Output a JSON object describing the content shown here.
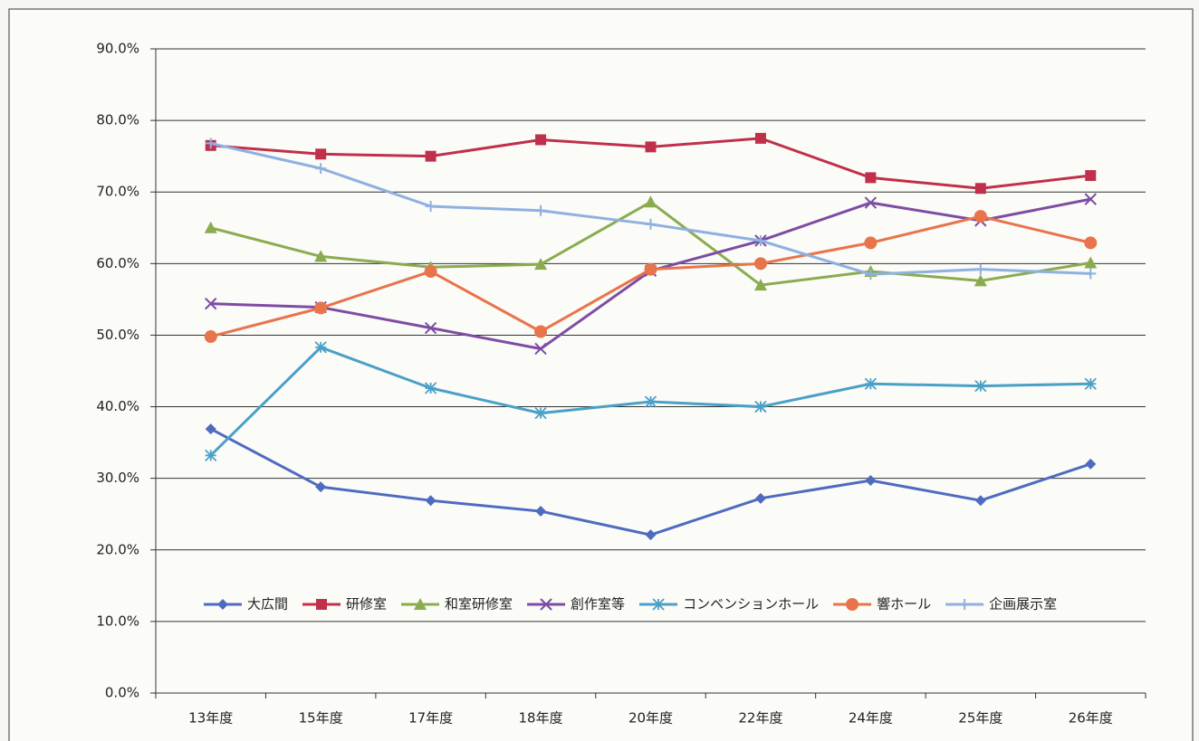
{
  "chart_data": {
    "type": "line",
    "categories": [
      "13年度",
      "15年度",
      "17年度",
      "18年度",
      "20年度",
      "22年度",
      "24年度",
      "25年度",
      "26年度"
    ],
    "series": [
      {
        "name": "大広間",
        "color": "#4f6bbf",
        "marker": "diamond",
        "values": [
          36.9,
          28.8,
          26.9,
          25.4,
          22.1,
          27.2,
          29.7,
          26.9,
          32.0
        ]
      },
      {
        "name": "研修室",
        "color": "#c0304a",
        "marker": "square",
        "values": [
          76.5,
          75.3,
          75.0,
          77.3,
          76.3,
          77.5,
          72.0,
          70.5,
          72.3
        ]
      },
      {
        "name": "和室研修室",
        "color": "#8aac4f",
        "marker": "triangle",
        "values": [
          65.0,
          61.0,
          59.5,
          59.9,
          68.6,
          57.0,
          58.9,
          57.6,
          60.1
        ]
      },
      {
        "name": "創作室等",
        "color": "#7e4ca3",
        "marker": "x",
        "values": [
          54.4,
          53.9,
          51.0,
          48.1,
          59.0,
          63.2,
          68.5,
          66.0,
          69.0
        ]
      },
      {
        "name": "コンベンションホール",
        "color": "#4aa0c7",
        "marker": "star",
        "values": [
          33.2,
          48.3,
          42.6,
          39.1,
          40.7,
          40.0,
          43.2,
          42.9,
          43.2
        ]
      },
      {
        "name": "響ホール",
        "color": "#e8744b",
        "marker": "circle",
        "values": [
          49.8,
          53.8,
          58.9,
          50.5,
          59.2,
          60.0,
          62.9,
          66.6,
          62.9
        ]
      },
      {
        "name": "企画展示室",
        "color": "#8fb0e0",
        "marker": "plus",
        "values": [
          76.8,
          73.3,
          68.0,
          67.4,
          65.5,
          63.2,
          58.5,
          59.2,
          58.6
        ]
      }
    ],
    "ylim": [
      0,
      90
    ],
    "yticks": [
      {
        "value": 0,
        "label": "0.0%"
      },
      {
        "value": 10,
        "label": "10.0%"
      },
      {
        "value": 20,
        "label": "20.0%"
      },
      {
        "value": 30,
        "label": "30.0%"
      },
      {
        "value": 40,
        "label": "40.0%"
      },
      {
        "value": 50,
        "label": "50.0%"
      },
      {
        "value": 60,
        "label": "60.0%"
      },
      {
        "value": 70,
        "label": "70.0%"
      },
      {
        "value": 80,
        "label": "80.0%"
      },
      {
        "value": 90,
        "label": "90.0%"
      }
    ],
    "grid": true,
    "legend": "bottom"
  }
}
